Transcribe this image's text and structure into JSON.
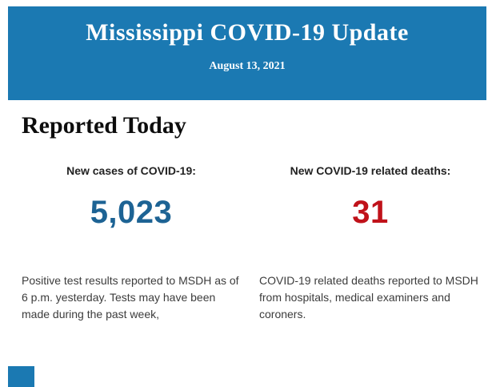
{
  "header": {
    "title": "Mississippi COVID-19 Update",
    "date": "August 13, 2021"
  },
  "section": {
    "title": "Reported Today"
  },
  "stats": [
    {
      "label": "New cases of COVID-19:",
      "value": "5,023",
      "description": "Positive test results reported to MSDH as of 6 p.m. yesterday. Tests may have been made during the past week,"
    },
    {
      "label": "New COVID-19 related deaths:",
      "value": "31",
      "description": "COVID-19 related deaths reported to MSDH from hospitals, medical examiners and coroners."
    }
  ],
  "colors": {
    "banner_blue": "#1b79b2",
    "cases_blue": "#1d6394",
    "deaths_red": "#c0121a"
  }
}
